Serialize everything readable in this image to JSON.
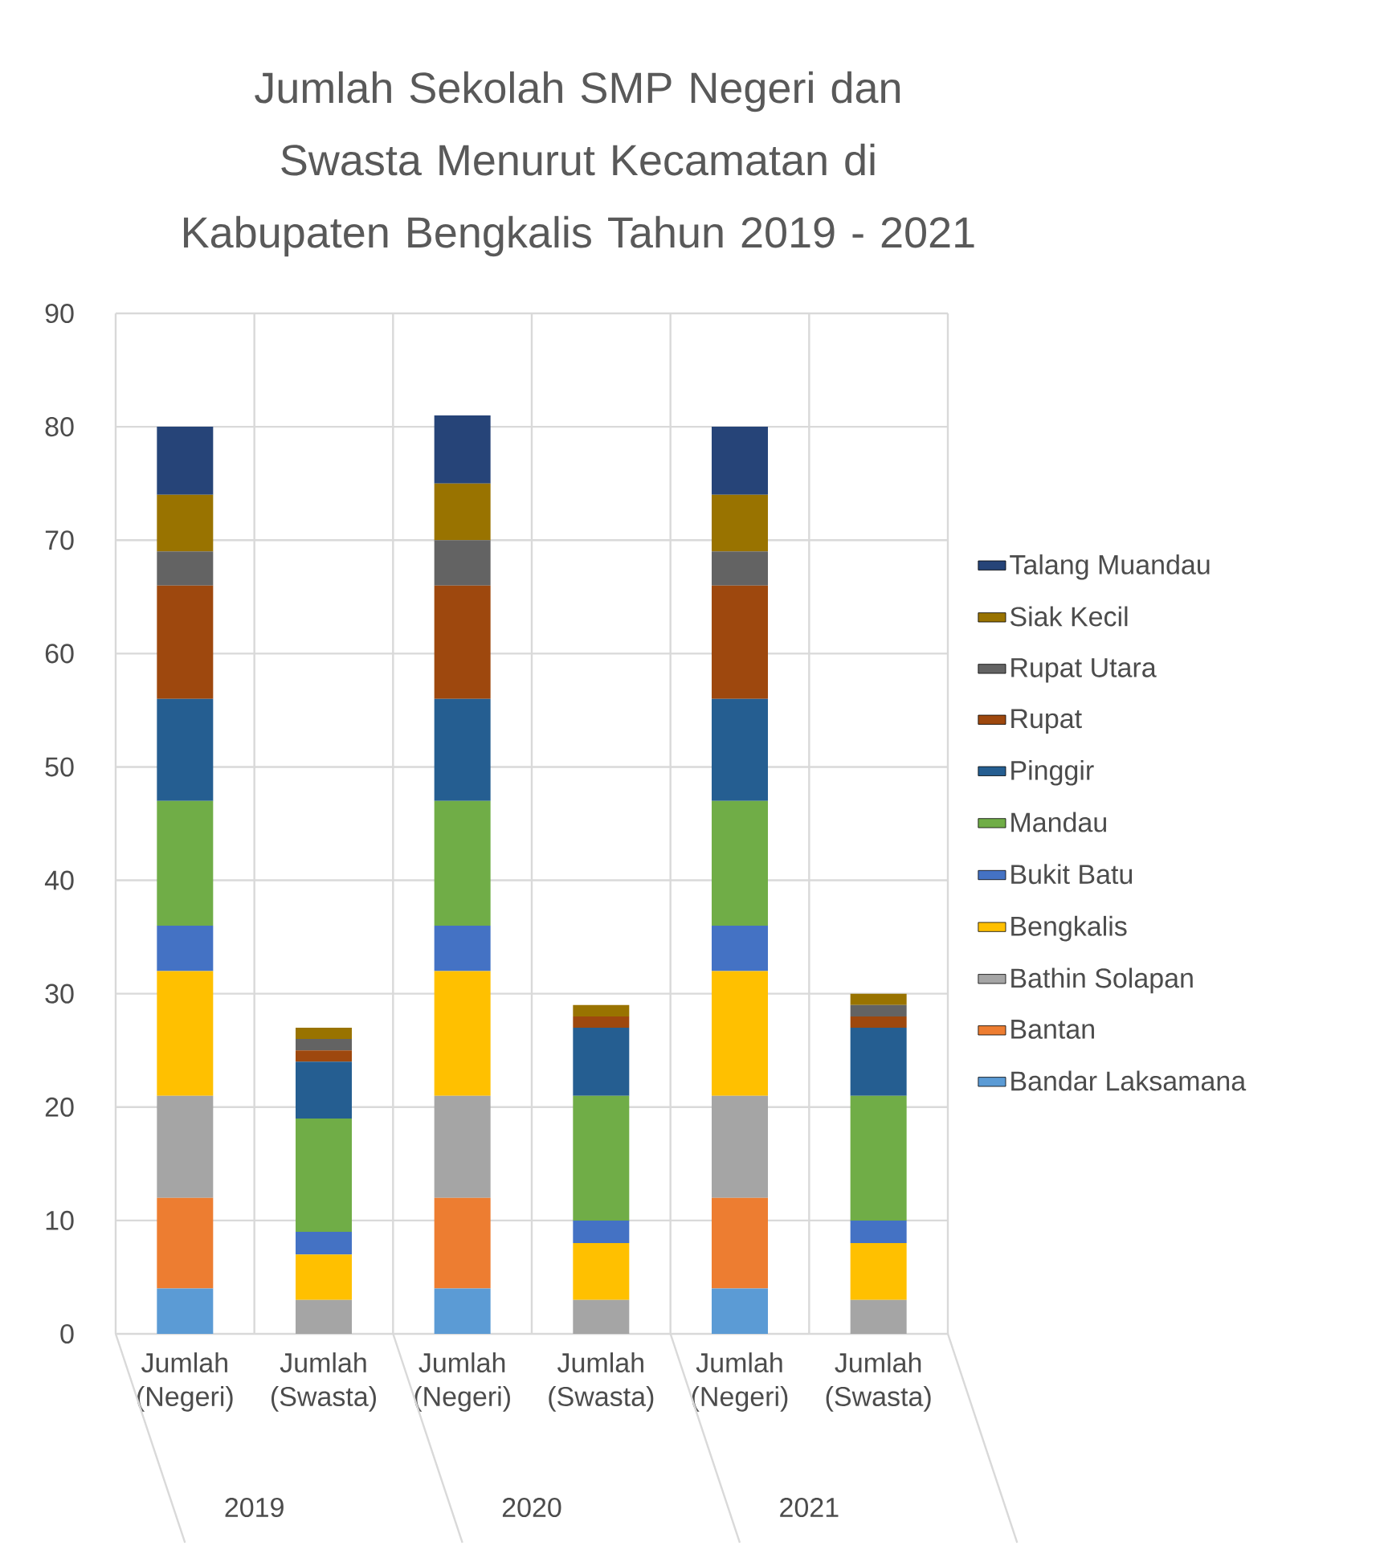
{
  "chart_data": {
    "type": "bar",
    "stacked": true,
    "title": "Jumlah Sekolah SMP Negeri dan Swasta Menurut Kecamatan di Kabupaten Bengkalis Tahun 2019 - 2021",
    "categories": [
      "Jumlah (Negeri)",
      "Jumlah (Swasta)",
      "Jumlah (Negeri)",
      "Jumlah (Swasta)",
      "Jumlah (Negeri)",
      "Jumlah (Swasta)"
    ],
    "annotations": [
      "2019",
      "2020",
      "2021"
    ],
    "ylim": [
      0,
      90
    ],
    "yticks": [
      0,
      10,
      20,
      30,
      40,
      50,
      60,
      70,
      80,
      90
    ],
    "grid": true,
    "legend": "right",
    "series": [
      {
        "name": "Bandar Laksamana",
        "color": "#5b9bd5",
        "values": [
          4,
          0,
          4,
          0,
          4,
          0
        ]
      },
      {
        "name": "Bantan",
        "color": "#ed7d31",
        "values": [
          8,
          0,
          8,
          0,
          8,
          0
        ]
      },
      {
        "name": "Bathin Solapan",
        "color": "#a5a5a5",
        "values": [
          9,
          3,
          9,
          3,
          9,
          3
        ]
      },
      {
        "name": "Bengkalis",
        "color": "#ffc000",
        "values": [
          11,
          4,
          11,
          5,
          11,
          5
        ]
      },
      {
        "name": "Bukit Batu",
        "color": "#4472c4",
        "values": [
          4,
          2,
          4,
          2,
          4,
          2
        ]
      },
      {
        "name": "Mandau",
        "color": "#70ad47",
        "values": [
          11,
          10,
          11,
          11,
          11,
          11
        ]
      },
      {
        "name": "Pinggir",
        "color": "#255e91",
        "values": [
          9,
          5,
          9,
          6,
          9,
          6
        ]
      },
      {
        "name": "Rupat",
        "color": "#9e480e",
        "values": [
          10,
          1,
          10,
          1,
          10,
          1
        ]
      },
      {
        "name": "Rupat Utara",
        "color": "#636363",
        "values": [
          3,
          1,
          4,
          0,
          3,
          1
        ]
      },
      {
        "name": "Siak Kecil",
        "color": "#997300",
        "values": [
          5,
          1,
          5,
          1,
          5,
          1
        ]
      },
      {
        "name": "Talang Muandau",
        "color": "#264478",
        "values": [
          6,
          0,
          6,
          0,
          6,
          0
        ]
      }
    ]
  }
}
